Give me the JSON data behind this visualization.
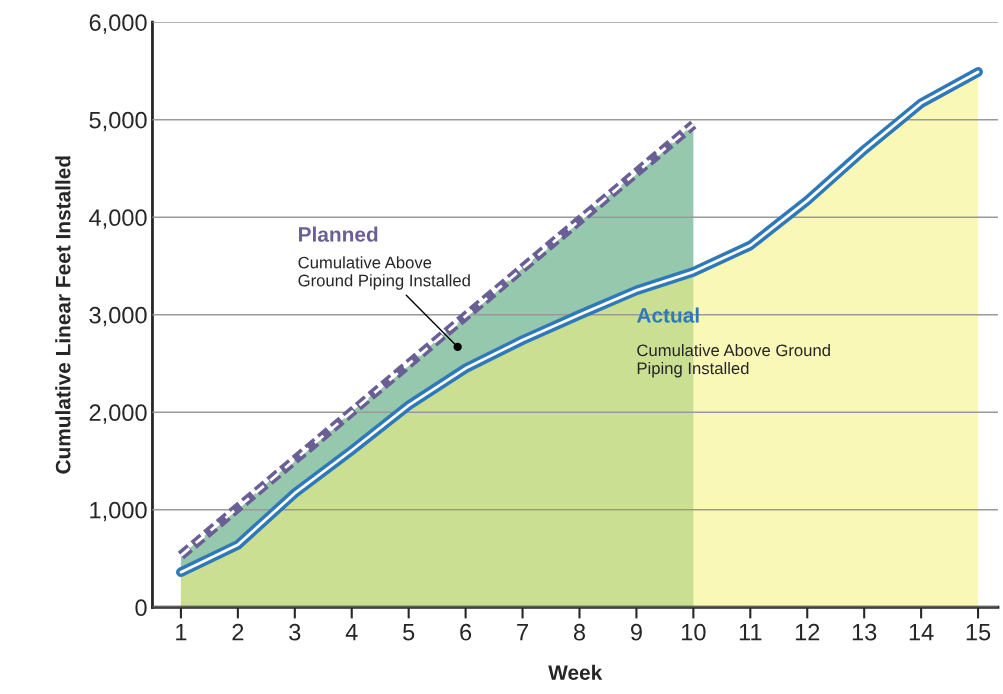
{
  "chart_data": {
    "type": "area",
    "xlabel": "Week",
    "ylabel": "Cumulative Linear Feet Installed",
    "xlim": [
      0.5,
      15.35
    ],
    "ylim": [
      0,
      6000
    ],
    "xticks": [
      1,
      2,
      3,
      4,
      5,
      6,
      7,
      8,
      9,
      10,
      11,
      12,
      13,
      14,
      15
    ],
    "yticks": [
      {
        "value": 0,
        "label": "0"
      },
      {
        "value": 1000,
        "label": "1,000"
      },
      {
        "value": 2000,
        "label": "2,000"
      },
      {
        "value": 3000,
        "label": "3,000"
      },
      {
        "value": 4000,
        "label": "4,000"
      },
      {
        "value": 5000,
        "label": "5,000"
      },
      {
        "value": 6000,
        "label": "6,000"
      }
    ],
    "grid": "y",
    "legend": false,
    "marker": "none",
    "series": [
      {
        "color": "#3f9a6a",
        "x": [
          1,
          10
        ],
        "values": [
          530,
          4950
        ]
      },
      {
        "color": "#f6f27a",
        "x": [
          1,
          2,
          3,
          4,
          5,
          6,
          7,
          8,
          9,
          10,
          11,
          12,
          13,
          14,
          15
        ],
        "values": [
          360,
          640,
          1170,
          1610,
          2070,
          2450,
          2740,
          3000,
          3250,
          3440,
          3710,
          4170,
          4690,
          5170,
          5490
        ]
      },
      {
        "type": "line",
        "name": "Planned",
        "color": "#6a5f95",
        "line_style": "dashed",
        "x": [
          1,
          10
        ],
        "values": [
          530,
          4950
        ]
      },
      {
        "type": "line",
        "name": "Actual",
        "color": "#2f79b8",
        "line_style": "solid",
        "x": [
          1,
          2,
          3,
          4,
          5,
          6,
          7,
          8,
          9,
          10,
          11,
          12,
          13,
          14,
          15
        ],
        "values": [
          360,
          640,
          1170,
          1610,
          2070,
          2450,
          2740,
          3000,
          3250,
          3440,
          3710,
          4170,
          4690,
          5170,
          5490
        ]
      }
    ],
    "annotations": [
      {
        "text": "Cumulative Above\nGround Piping Installed",
        "x": 5.86,
        "y": 2670
      },
      "Cumulative Above Ground\nPiping Installed"
    ]
  }
}
